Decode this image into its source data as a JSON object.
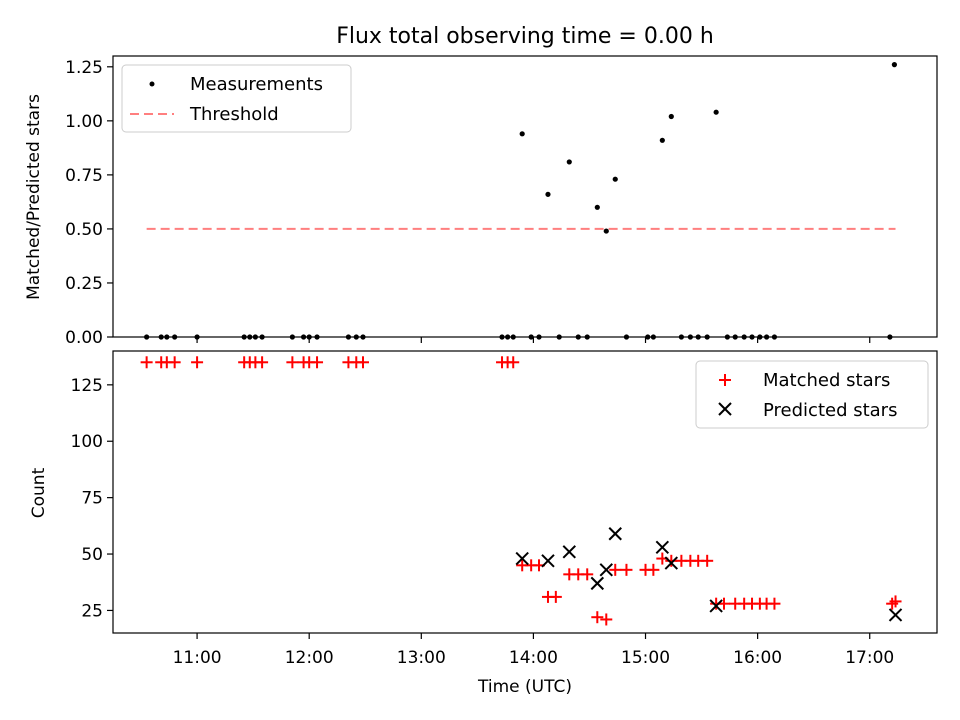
{
  "title": "Flux total observing time = 0.00 h",
  "colors": {
    "measurement": "#000000",
    "threshold": "#ff7f7f",
    "matched": "#ff0000",
    "predicted": "#000000"
  },
  "chart_data": [
    {
      "type": "scatter",
      "ylabel": "Matched/Predicted stars",
      "ylim": [
        0,
        1.3
      ],
      "yticks": [
        0.0,
        0.25,
        0.5,
        0.75,
        1.0,
        1.25
      ],
      "yticklabels": [
        "0.00",
        "0.25",
        "0.50",
        "0.75",
        "1.00",
        "1.25"
      ],
      "xlim": [
        10.25,
        17.6
      ],
      "legend": {
        "placement": "upper-left",
        "measurements_label": "Measurements",
        "threshold_label": "Threshold"
      },
      "threshold": {
        "value": 0.5,
        "x_range": [
          10.55,
          17.23
        ]
      },
      "series": [
        {
          "name": "Measurements",
          "x": [
            10.55,
            10.68,
            10.73,
            10.8,
            11.0,
            11.42,
            11.47,
            11.52,
            11.58,
            11.85,
            11.95,
            12.0,
            12.07,
            12.35,
            12.42,
            12.48,
            13.72,
            13.77,
            13.82,
            13.9,
            13.98,
            14.05,
            14.13,
            14.23,
            14.32,
            14.4,
            14.48,
            14.57,
            14.65,
            14.73,
            14.83,
            15.02,
            15.07,
            15.15,
            15.23,
            15.32,
            15.4,
            15.47,
            15.55,
            15.63,
            15.73,
            15.8,
            15.88,
            15.95,
            16.02,
            16.08,
            16.15,
            17.18,
            17.22
          ],
          "y": [
            0,
            0,
            0,
            0,
            0,
            0,
            0,
            0,
            0,
            0,
            0,
            0,
            0,
            0,
            0,
            0,
            0,
            0,
            0,
            0.94,
            0,
            0,
            0.66,
            0,
            0.81,
            0,
            0,
            0.6,
            0.49,
            0.73,
            0,
            0,
            0,
            0.91,
            1.02,
            0,
            0,
            0,
            0,
            1.04,
            0,
            0,
            0,
            0,
            0,
            0,
            0,
            0,
            1.26
          ]
        }
      ]
    },
    {
      "type": "scatter",
      "xlabel": "Time (UTC)",
      "ylabel": "Count",
      "ylim": [
        15,
        140
      ],
      "yticks": [
        25,
        50,
        75,
        100,
        125
      ],
      "yticklabels": [
        "25",
        "50",
        "75",
        "100",
        "125"
      ],
      "xlim": [
        10.25,
        17.6
      ],
      "xticks": [
        11,
        12,
        13,
        14,
        15,
        16,
        17
      ],
      "xticklabels": [
        "11:00",
        "12:00",
        "13:00",
        "14:00",
        "15:00",
        "16:00",
        "17:00"
      ],
      "legend": {
        "placement": "upper-right",
        "matched_label": "Matched stars",
        "predicted_label": "Predicted stars"
      },
      "series": [
        {
          "name": "Matched stars",
          "x": [
            10.55,
            10.68,
            10.73,
            10.8,
            11.0,
            11.42,
            11.47,
            11.52,
            11.58,
            11.85,
            11.95,
            12.0,
            12.07,
            12.35,
            12.42,
            12.48,
            13.72,
            13.77,
            13.82,
            13.9,
            13.98,
            14.05,
            14.13,
            14.2,
            14.32,
            14.4,
            14.48,
            14.57,
            14.65,
            14.73,
            14.83,
            15.0,
            15.07,
            15.15,
            15.23,
            15.32,
            15.4,
            15.47,
            15.55,
            15.63,
            15.7,
            15.8,
            15.88,
            15.95,
            16.02,
            16.08,
            16.15,
            17.2,
            17.23
          ],
          "y": [
            135,
            135,
            135,
            135,
            135,
            135,
            135,
            135,
            135,
            135,
            135,
            135,
            135,
            135,
            135,
            135,
            135,
            135,
            135,
            45,
            45,
            45,
            31,
            31,
            41,
            41,
            41,
            22,
            21,
            43,
            43,
            43,
            43,
            48,
            47,
            47,
            47,
            47,
            47,
            28,
            28,
            28,
            28,
            28,
            28,
            28,
            28,
            28,
            29
          ]
        },
        {
          "name": "Predicted stars",
          "x": [
            13.9,
            14.13,
            14.32,
            14.57,
            14.65,
            14.73,
            15.15,
            15.23,
            15.63,
            17.23
          ],
          "y": [
            48,
            47,
            51,
            37,
            43,
            59,
            53,
            46,
            27,
            23
          ]
        }
      ]
    }
  ]
}
